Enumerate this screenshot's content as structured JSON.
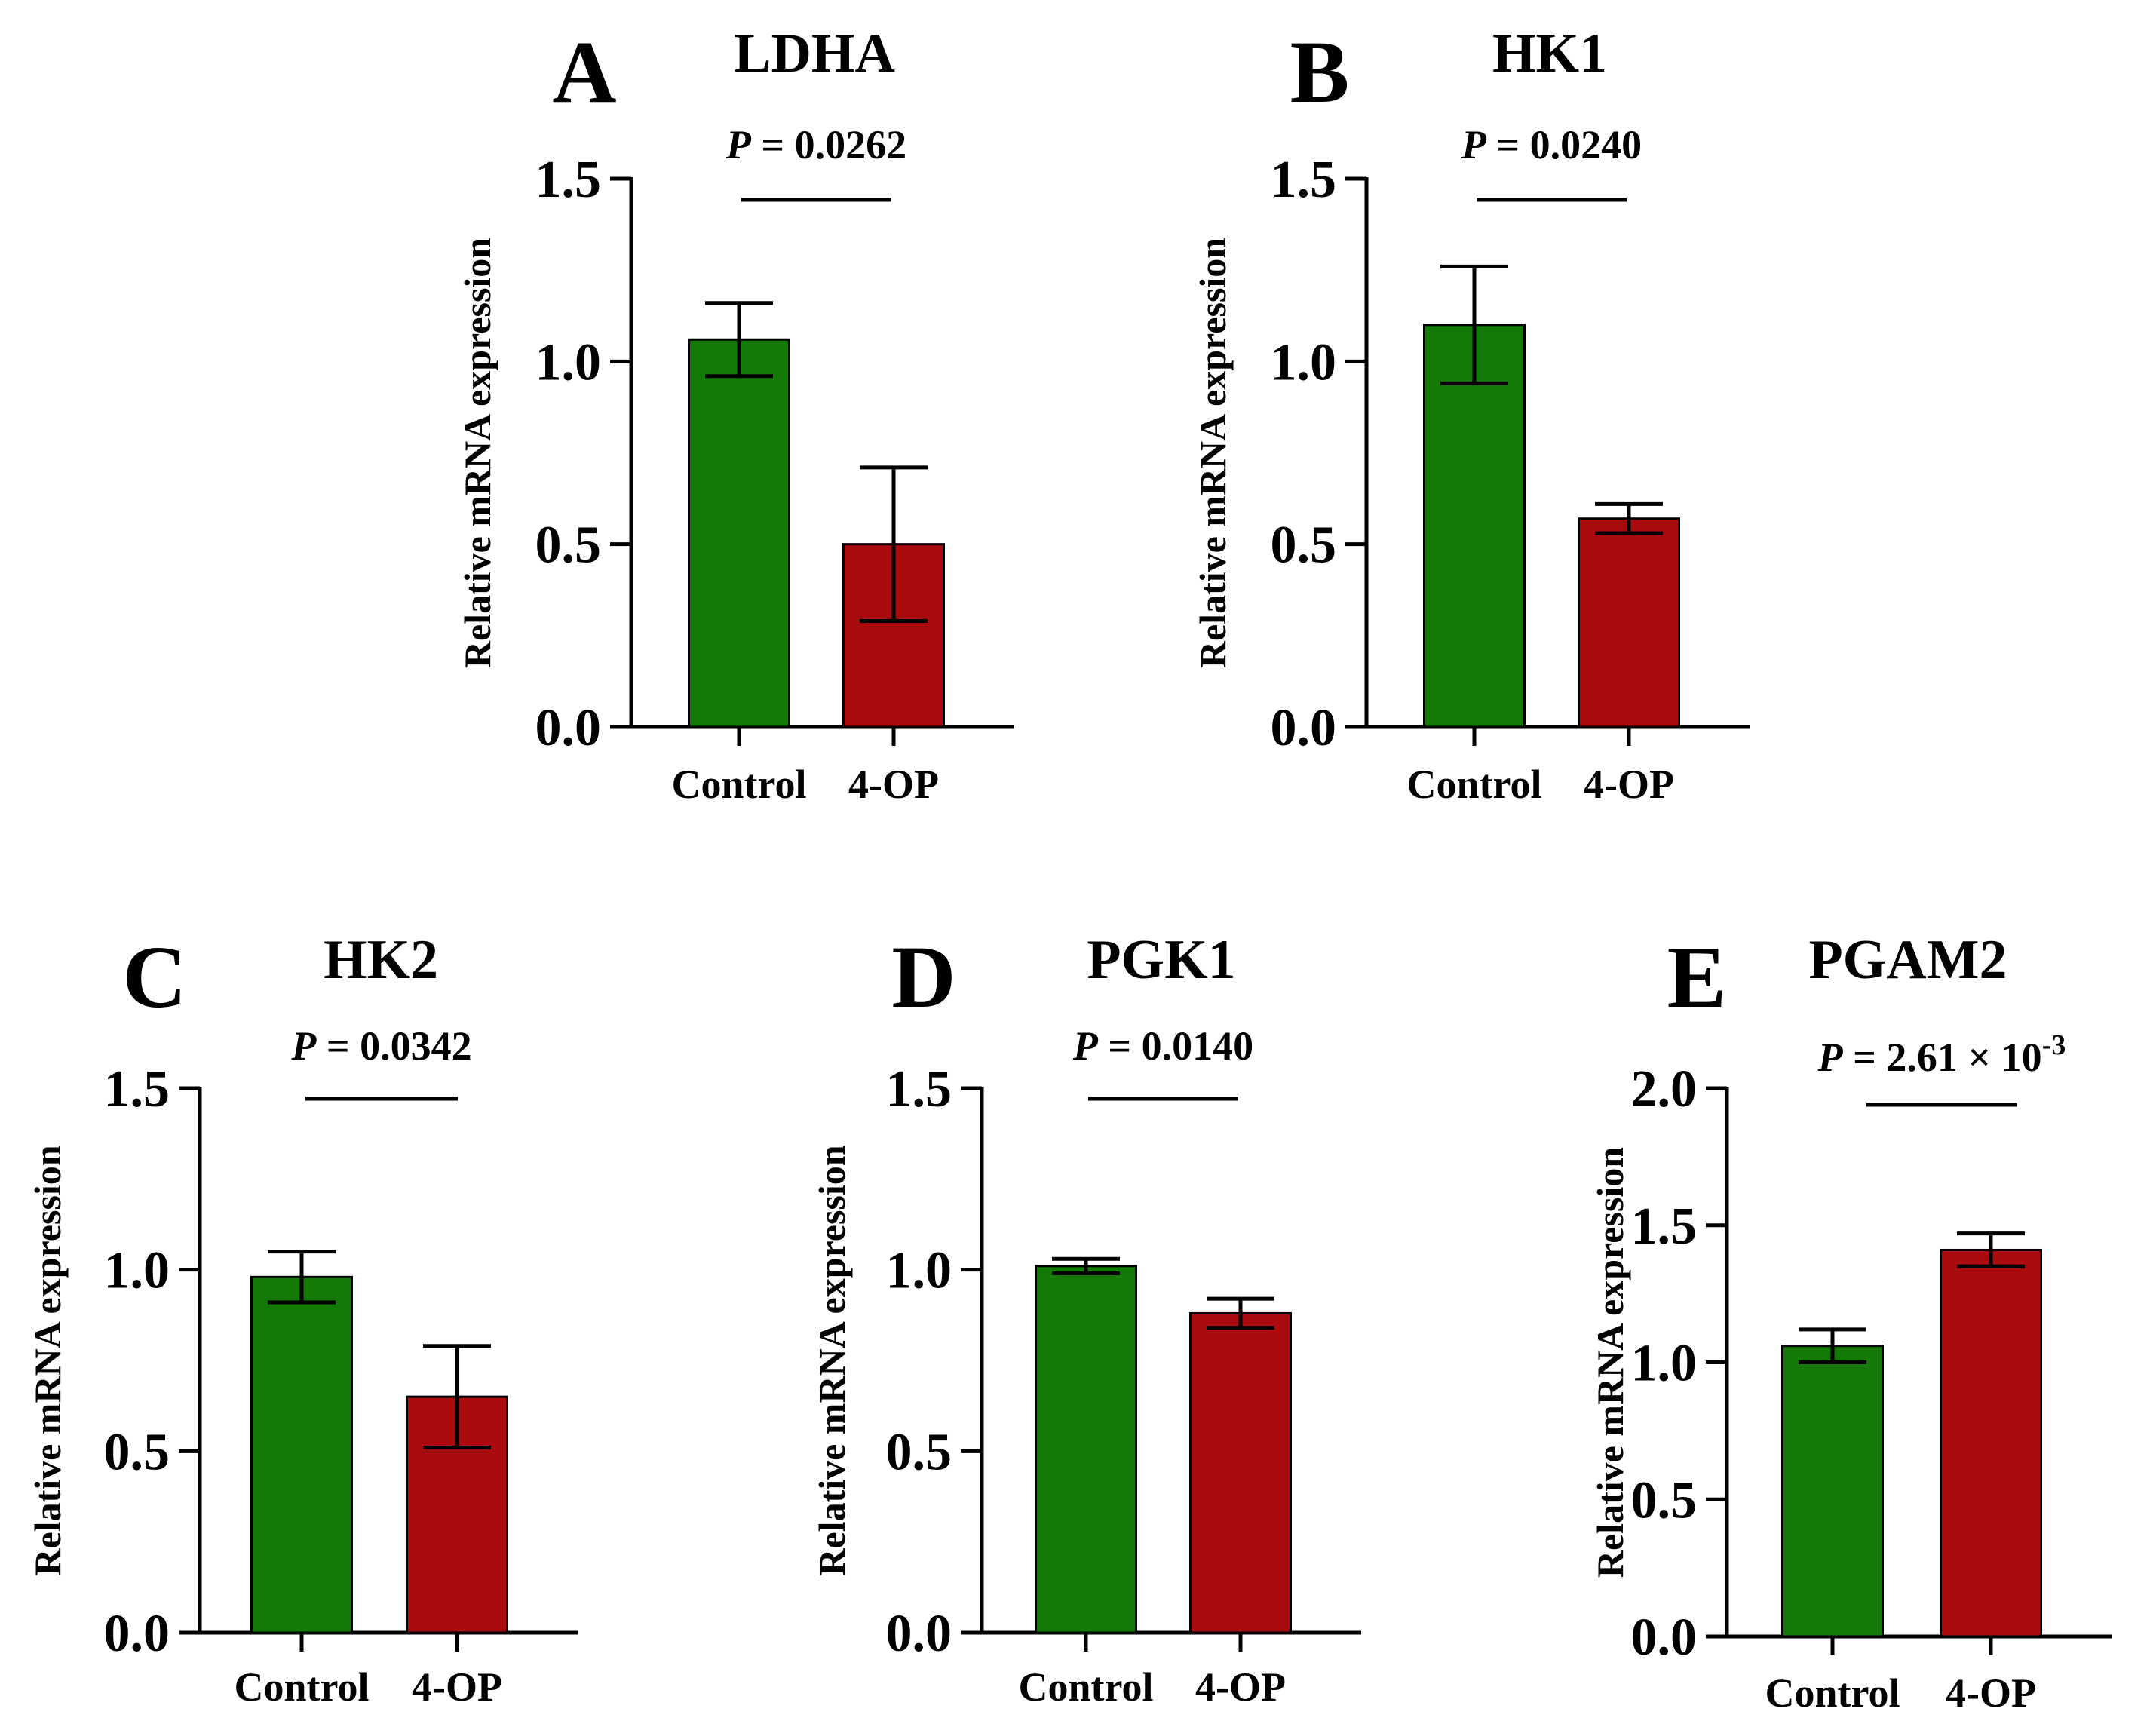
{
  "colors": {
    "control": "#137a06",
    "treatment": "#aa0b0e",
    "axis": "#000000"
  },
  "chart_data": [
    {
      "type": "bar",
      "panel": "A",
      "title": "LDHA",
      "categories": [
        "Control",
        "4-OP"
      ],
      "values": [
        1.06,
        0.5
      ],
      "errors": [
        0.1,
        0.21
      ],
      "ylabel": "Relative mRNA expression",
      "ylim": [
        0,
        1.5
      ],
      "yticks": [
        0.0,
        0.5,
        1.0,
        1.5
      ],
      "ytick_labels": [
        "0.0",
        "0.5",
        "1.0",
        "1.5"
      ],
      "p_label": "P",
      "p_rest": " = 0.0262"
    },
    {
      "type": "bar",
      "panel": "B",
      "title": "HK1",
      "categories": [
        "Control",
        "4-OP"
      ],
      "values": [
        1.1,
        0.57
      ],
      "errors": [
        0.16,
        0.04
      ],
      "ylabel": "Relative mRNA expression",
      "ylim": [
        0,
        1.5
      ],
      "yticks": [
        0.0,
        0.5,
        1.0,
        1.5
      ],
      "ytick_labels": [
        "0.0",
        "0.5",
        "1.0",
        "1.5"
      ],
      "p_label": "P",
      "p_rest": " = 0.0240"
    },
    {
      "type": "bar",
      "panel": "C",
      "title": "HK2",
      "categories": [
        "Control",
        "4-OP"
      ],
      "values": [
        0.98,
        0.65
      ],
      "errors": [
        0.07,
        0.14
      ],
      "ylabel": "Relative mRNA expression",
      "ylim": [
        0,
        1.5
      ],
      "yticks": [
        0.0,
        0.5,
        1.0,
        1.5
      ],
      "ytick_labels": [
        "0.0",
        "0.5",
        "1.0",
        "1.5"
      ],
      "p_label": "P",
      "p_rest": " = 0.0342"
    },
    {
      "type": "bar",
      "panel": "D",
      "title": "PGK1",
      "categories": [
        "Control",
        "4-OP"
      ],
      "values": [
        1.01,
        0.88
      ],
      "errors": [
        0.02,
        0.04
      ],
      "ylabel": "Relative mRNA expression",
      "ylim": [
        0,
        1.5
      ],
      "yticks": [
        0.0,
        0.5,
        1.0,
        1.5
      ],
      "ytick_labels": [
        "0.0",
        "0.5",
        "1.0",
        "1.5"
      ],
      "p_label": "P",
      "p_rest": " = 0.0140"
    },
    {
      "type": "bar",
      "panel": "E",
      "title": "PGAM2",
      "categories": [
        "Control",
        "4-OP"
      ],
      "values": [
        1.06,
        1.41
      ],
      "errors": [
        0.06,
        0.06
      ],
      "ylabel": "Relative mRNA expression",
      "ylim": [
        0,
        2.0
      ],
      "yticks": [
        0.0,
        0.5,
        1.0,
        1.5,
        2.0
      ],
      "ytick_labels": [
        "0.0",
        "0.5",
        "1.0",
        "1.5",
        "2.0"
      ],
      "p_label": "P",
      "p_rest": " = 2.61 × 10",
      "p_exp": "-3"
    }
  ]
}
